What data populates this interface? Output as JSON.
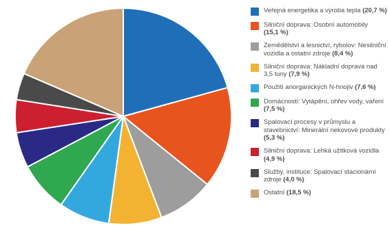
{
  "chart_data": {
    "type": "pie",
    "start": "top-clockwise",
    "slices": [
      {
        "label": "Veřejná energetika a výroba tepla",
        "value": 20.7,
        "value_label": "(20,7 %)",
        "color": "#1f6fb8",
        "icon": "blue-square-icon"
      },
      {
        "label": "Silniční doprava: Osobní automobily",
        "value": 15.1,
        "value_label": "(15,1 %)",
        "color": "#e8541e",
        "icon": "orange-square-icon"
      },
      {
        "label": "Zemědělství a lesnictví, rybolov: Nesilniční vozidla a ostatní zdroje",
        "value": 8.4,
        "value_label": "(8,4 %)",
        "color": "#9d9d9d",
        "icon": "gray-square-icon"
      },
      {
        "label": "Silniční doprava: Nákladní doprava nad 3,5 tuny",
        "value": 7.9,
        "value_label": "(7,9 %)",
        "color": "#f4b233",
        "icon": "yellow-square-icon"
      },
      {
        "label": "Použití anorganických N-hnojiv",
        "value": 7.6,
        "value_label": "(7,6 %)",
        "color": "#33a8df",
        "icon": "light-blue-square-icon"
      },
      {
        "label": "Domácnosti: Vytápění, ohřev vody, vaření",
        "value": 7.5,
        "value_label": "(7,5 %)",
        "color": "#2fa84f",
        "icon": "green-square-icon"
      },
      {
        "label": "Spalovací procesy v průmyslu a stavebnictví: Minerální nekovové produkty",
        "value": 5.3,
        "value_label": "(5,3 %)",
        "color": "#2a2a86",
        "icon": "navy-square-icon"
      },
      {
        "label": "Silniční doprava: Lehká užitková vozidla",
        "value": 4.9,
        "value_label": "(4,9 %)",
        "color": "#cc1f2f",
        "icon": "red-square-icon"
      },
      {
        "label": "Služby, instituce: Spalovací stacionární zdroje",
        "value": 4.0,
        "value_label": "(4,0 %)",
        "color": "#4a4a4a",
        "icon": "dark-gray-square-icon"
      },
      {
        "label": "Ostatní",
        "value": 18.5,
        "value_label": "(18,5 %)",
        "color": "#c9a277",
        "icon": "tan-square-icon"
      }
    ],
    "legend_position": "right"
  }
}
